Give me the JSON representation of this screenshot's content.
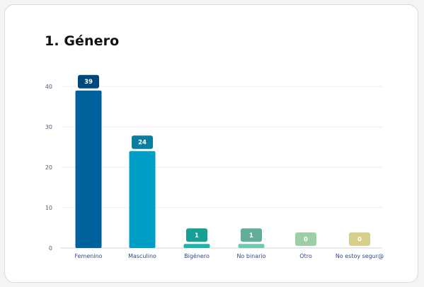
{
  "card": {
    "title": "1. Género"
  },
  "chart_data": {
    "type": "bar",
    "title": "1. Género",
    "categories": [
      "Femenino",
      "Masculino",
      "Bigénero",
      "No binario",
      "Otro",
      "No estoy segur@"
    ],
    "values": [
      39,
      24,
      1,
      1,
      0,
      0
    ],
    "colors": [
      "#00619c",
      "#009fc8",
      "#1fb3a9",
      "#6dc9b4",
      "#9dcea4",
      "#d6d08a"
    ],
    "label_colors": [
      "#00497c",
      "#0a7e9e",
      "#169f95",
      "#63ad9d",
      "#9dcea4",
      "#d6d08a"
    ],
    "yticks": [
      0,
      10,
      20,
      30,
      40
    ],
    "ylim": [
      0,
      42
    ],
    "grid": true,
    "legend": "none"
  }
}
